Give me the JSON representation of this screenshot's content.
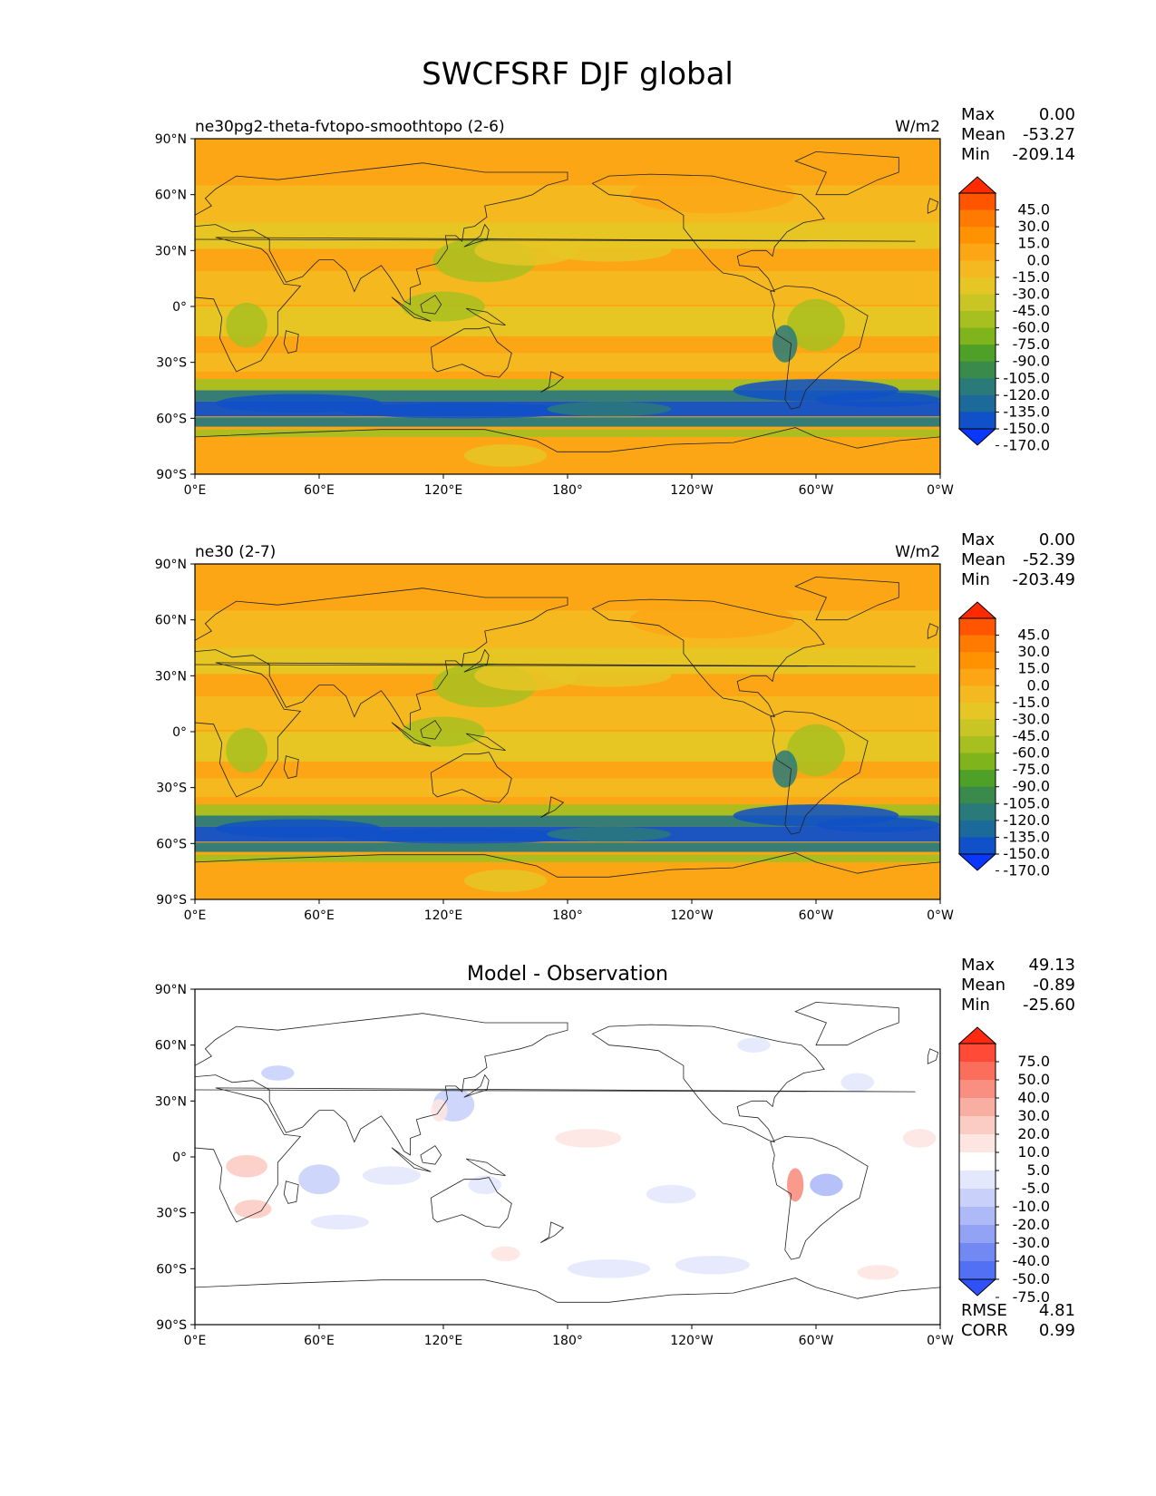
{
  "title": "SWCFSRF DJF global",
  "lat_ticks": [
    "90°N",
    "60°N",
    "30°N",
    "0°",
    "30°S",
    "60°S",
    "90°S"
  ],
  "lon_ticks": [
    "0°E",
    "60°E",
    "120°E",
    "180°",
    "120°W",
    "60°W",
    "0°W"
  ],
  "panels": [
    {
      "left_title": "ne30pg2-theta-fvtopo-smoothtopo (2-6)",
      "center_title": "",
      "units": "W/m2",
      "stats": [
        {
          "label": "Max",
          "value": "0.00"
        },
        {
          "label": "Mean",
          "value": "-53.27"
        },
        {
          "label": "Min",
          "value": "-209.14"
        }
      ],
      "colorbar": {
        "labels": [
          "45.0",
          "30.0",
          "15.0",
          "0.0",
          "-15.0",
          "-30.0",
          "-45.0",
          "-60.0",
          "-75.0",
          "-90.0",
          "-105.0",
          "-120.0",
          "-135.0",
          "-150.0",
          "-170.0"
        ],
        "colors": [
          "#ff2a00",
          "#ff5500",
          "#ff7a00",
          "#ff9200",
          "#fca616",
          "#f4b820",
          "#e6c624",
          "#c9c524",
          "#a8bf20",
          "#7fb41d",
          "#4ea026",
          "#3a8a4c",
          "#2a7a7a",
          "#1b6a9a",
          "#1050c8",
          "#0a37ff"
        ]
      },
      "footer": []
    },
    {
      "left_title": "ne30 (2-7)",
      "center_title": "",
      "units": "W/m2",
      "stats": [
        {
          "label": "Max",
          "value": "0.00"
        },
        {
          "label": "Mean",
          "value": "-52.39"
        },
        {
          "label": "Min",
          "value": "-203.49"
        }
      ],
      "colorbar": {
        "labels": [
          "45.0",
          "30.0",
          "15.0",
          "0.0",
          "-15.0",
          "-30.0",
          "-45.0",
          "-60.0",
          "-75.0",
          "-90.0",
          "-105.0",
          "-120.0",
          "-135.0",
          "-150.0",
          "-170.0"
        ],
        "colors": [
          "#ff2a00",
          "#ff5500",
          "#ff7a00",
          "#ff9200",
          "#fca616",
          "#f4b820",
          "#e6c624",
          "#c9c524",
          "#a8bf20",
          "#7fb41d",
          "#4ea026",
          "#3a8a4c",
          "#2a7a7a",
          "#1b6a9a",
          "#1050c8",
          "#0a37ff"
        ]
      },
      "footer": []
    },
    {
      "left_title": "",
      "center_title": "Model - Observation",
      "units": "",
      "stats": [
        {
          "label": "Max",
          "value": "49.13"
        },
        {
          "label": "Mean",
          "value": "-0.89"
        },
        {
          "label": "Min",
          "value": "-25.60"
        }
      ],
      "colorbar": {
        "labels": [
          "75.0",
          "50.0",
          "40.0",
          "30.0",
          "20.0",
          "10.0",
          "5.0",
          "-5.0",
          "-10.0",
          "-20.0",
          "-30.0",
          "-40.0",
          "-50.0",
          "-75.0"
        ],
        "colors": [
          "#ff2a10",
          "#ff4a38",
          "#fb6e5c",
          "#f98f80",
          "#f9aea2",
          "#fbccc4",
          "#fde6e2",
          "#ffffff",
          "#e4e8fd",
          "#c9d1fb",
          "#aebaf8",
          "#92a3f6",
          "#7289f3",
          "#5270f4",
          "#2e52f8"
        ]
      },
      "footer": [
        {
          "label": "RMSE",
          "value": "4.81"
        },
        {
          "label": "CORR",
          "value": "0.99"
        }
      ]
    }
  ]
}
